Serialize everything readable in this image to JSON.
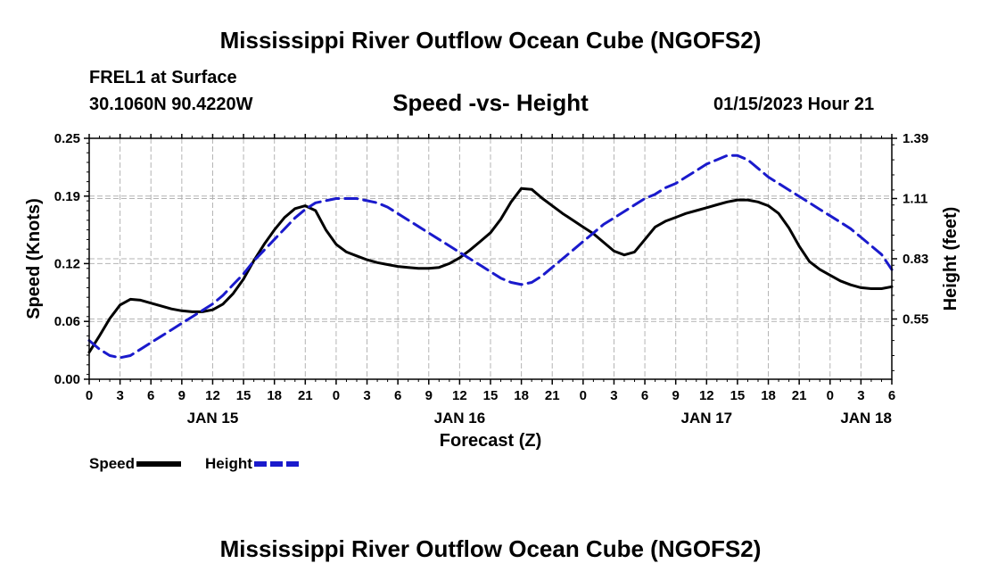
{
  "page": {
    "title": "Mississippi River Outflow Ocean Cube (NGOFS2)",
    "footer_title": "Mississippi River Outflow Ocean Cube (NGOFS2)",
    "station": "FREL1 at Surface",
    "coords": "30.1060N  90.4220W",
    "subtitle": "Speed -vs- Height",
    "datetime": "01/15/2023 Hour 21"
  },
  "legend": {
    "speed_label": "Speed",
    "height_label": "Height"
  },
  "colors": {
    "speed": "#000000",
    "height": "#1a1acc",
    "grid": "#b4b4b4"
  },
  "chart_data": {
    "type": "line",
    "title": "Speed -vs- Height",
    "xlabel": "Forecast (Z)",
    "ylabel": "Speed (Knots)",
    "y2label": "Height (feet)",
    "xlim": [
      0,
      78
    ],
    "ylim": [
      0,
      0.25
    ],
    "y2lim": [
      0.27,
      1.39
    ],
    "x_ticks": [
      0,
      3,
      6,
      9,
      12,
      15,
      18,
      21,
      24,
      27,
      30,
      33,
      36,
      39,
      42,
      45,
      48,
      51,
      54,
      57,
      60,
      63,
      66,
      69,
      72,
      75,
      78
    ],
    "x_tick_labels": [
      "0",
      "3",
      "6",
      "9",
      "12",
      "15",
      "18",
      "21",
      "0",
      "3",
      "6",
      "9",
      "12",
      "15",
      "18",
      "21",
      "0",
      "3",
      "6",
      "9",
      "12",
      "15",
      "18",
      "21",
      "0",
      "3",
      "6"
    ],
    "day_labels": [
      {
        "x": 12,
        "label": "JAN 15"
      },
      {
        "x": 36,
        "label": "JAN 16"
      },
      {
        "x": 60,
        "label": "JAN 17"
      },
      {
        "x": 75.5,
        "label": "JAN 18"
      }
    ],
    "y_ticks": [
      0.0,
      0.06,
      0.12,
      0.19,
      0.25
    ],
    "y_tick_labels": [
      "0.00",
      "0.06",
      "0.12",
      "0.19",
      "0.25"
    ],
    "y2_ticks": [
      0.55,
      0.83,
      1.11,
      1.39
    ],
    "y2_tick_labels": [
      "0.55",
      "0.83",
      "1.11",
      "1.39"
    ],
    "grid": true,
    "legend_position": "bottom-left",
    "series": [
      {
        "name": "Speed",
        "axis": "left",
        "style": "solid",
        "x": [
          0,
          1,
          2,
          3,
          4,
          5,
          6,
          7,
          8,
          9,
          10,
          11,
          12,
          13,
          14,
          15,
          16,
          17,
          18,
          19,
          20,
          21,
          22,
          23,
          24,
          25,
          26,
          27,
          28,
          29,
          30,
          31,
          32,
          33,
          34,
          35,
          36,
          37,
          38,
          39,
          40,
          41,
          42,
          43,
          44,
          45,
          46,
          47,
          48,
          49,
          50,
          51,
          52,
          53,
          54,
          55,
          56,
          57,
          58,
          59,
          60,
          61,
          62,
          63,
          64,
          65,
          66,
          67,
          68,
          69,
          70,
          71,
          72,
          73,
          74,
          75,
          76,
          77,
          78
        ],
        "values": [
          0.028,
          0.045,
          0.063,
          0.077,
          0.083,
          0.082,
          0.079,
          0.076,
          0.073,
          0.071,
          0.07,
          0.07,
          0.072,
          0.078,
          0.089,
          0.104,
          0.123,
          0.14,
          0.155,
          0.168,
          0.177,
          0.18,
          0.175,
          0.155,
          0.14,
          0.132,
          0.128,
          0.124,
          0.121,
          0.119,
          0.117,
          0.116,
          0.115,
          0.115,
          0.116,
          0.12,
          0.126,
          0.134,
          0.143,
          0.152,
          0.166,
          0.184,
          0.198,
          0.197,
          0.188,
          0.18,
          0.172,
          0.165,
          0.158,
          0.151,
          0.142,
          0.133,
          0.129,
          0.132,
          0.145,
          0.158,
          0.164,
          0.168,
          0.172,
          0.175,
          0.178,
          0.181,
          0.184,
          0.186,
          0.186,
          0.184,
          0.18,
          0.172,
          0.157,
          0.138,
          0.122,
          0.114,
          0.108,
          0.102,
          0.098,
          0.095,
          0.094,
          0.094,
          0.096
        ]
      },
      {
        "name": "Height",
        "axis": "right",
        "style": "dashed",
        "x": [
          0,
          1,
          2,
          3,
          4,
          5,
          6,
          7,
          8,
          9,
          10,
          11,
          12,
          13,
          14,
          15,
          16,
          17,
          18,
          19,
          20,
          21,
          22,
          23,
          24,
          25,
          26,
          27,
          28,
          29,
          30,
          31,
          32,
          33,
          34,
          35,
          36,
          37,
          38,
          39,
          40,
          41,
          42,
          43,
          44,
          45,
          46,
          47,
          48,
          49,
          50,
          51,
          52,
          53,
          54,
          55,
          56,
          57,
          58,
          59,
          60,
          61,
          62,
          63,
          64,
          65,
          66,
          67,
          68,
          69,
          70,
          71,
          72,
          73,
          74,
          75,
          76,
          77,
          78
        ],
        "values": [
          0.45,
          0.41,
          0.38,
          0.37,
          0.38,
          0.41,
          0.44,
          0.47,
          0.5,
          0.53,
          0.56,
          0.59,
          0.62,
          0.66,
          0.71,
          0.76,
          0.82,
          0.87,
          0.92,
          0.97,
          1.02,
          1.06,
          1.09,
          1.1,
          1.11,
          1.11,
          1.11,
          1.1,
          1.09,
          1.07,
          1.04,
          1.01,
          0.98,
          0.95,
          0.92,
          0.89,
          0.86,
          0.83,
          0.8,
          0.77,
          0.74,
          0.72,
          0.71,
          0.72,
          0.75,
          0.79,
          0.83,
          0.87,
          0.91,
          0.95,
          0.99,
          1.02,
          1.05,
          1.08,
          1.11,
          1.13,
          1.16,
          1.18,
          1.21,
          1.24,
          1.27,
          1.29,
          1.31,
          1.31,
          1.29,
          1.25,
          1.21,
          1.18,
          1.15,
          1.12,
          1.09,
          1.06,
          1.03,
          1.0,
          0.97,
          0.93,
          0.89,
          0.85,
          0.78
        ]
      }
    ]
  }
}
